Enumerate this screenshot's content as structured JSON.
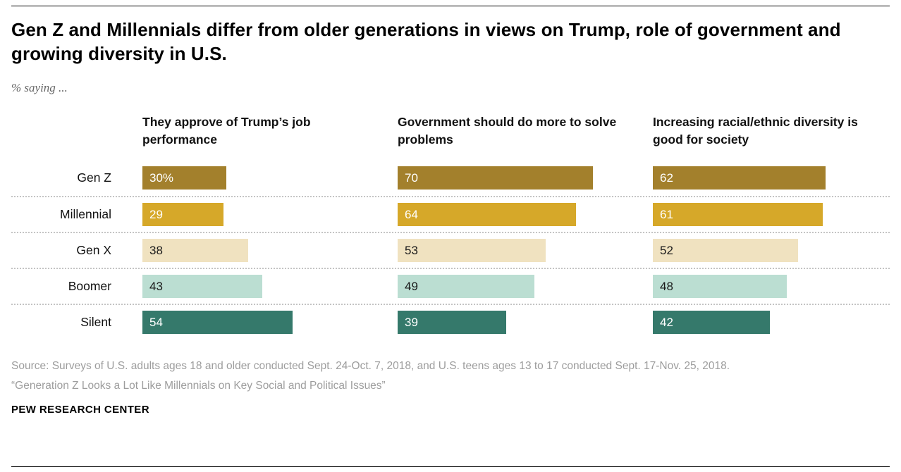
{
  "header": {
    "title": "Gen Z and Millennials differ from older generations in views on Trump, role of government and growing diversity in U.S.",
    "subtitle": "% saying ..."
  },
  "chart_data": {
    "type": "bar",
    "orientation": "horizontal",
    "legend": "none",
    "grid": "dotted-row-separators",
    "categories": [
      "Gen Z",
      "Millennial",
      "Gen X",
      "Boomer",
      "Silent"
    ],
    "xlim": [
      0,
      85
    ],
    "panels": [
      {
        "title": "They approve of Trump’s job performance",
        "values": [
          30,
          29,
          38,
          43,
          54
        ],
        "labels": [
          "30%",
          "29",
          "38",
          "43",
          "54"
        ]
      },
      {
        "title": "Government should do more to solve problems",
        "values": [
          70,
          64,
          53,
          49,
          39
        ],
        "labels": [
          "70",
          "64",
          "53",
          "49",
          "39"
        ]
      },
      {
        "title": "Increasing racial/ethnic diversity is good for society",
        "values": [
          62,
          61,
          52,
          48,
          42
        ],
        "labels": [
          "62",
          "61",
          "52",
          "48",
          "42"
        ]
      }
    ],
    "bar_colors": [
      "#A3802C",
      "#D6A829",
      "#F0E2C0",
      "#BBDED2",
      "#35796B"
    ],
    "bar_text_colors": [
      "#ffffff",
      "#ffffff",
      "#1a1a1a",
      "#1a1a1a",
      "#ffffff"
    ]
  },
  "footer": {
    "source": "Source: Surveys of U.S. adults ages 18 and older conducted Sept. 24-Oct. 7, 2018, and U.S. teens ages 13 to 17 conducted Sept. 17-Nov. 25, 2018.",
    "report": "“Generation Z Looks a Lot Like Millennials on Key Social and Political Issues”",
    "brand": "PEW RESEARCH CENTER"
  }
}
